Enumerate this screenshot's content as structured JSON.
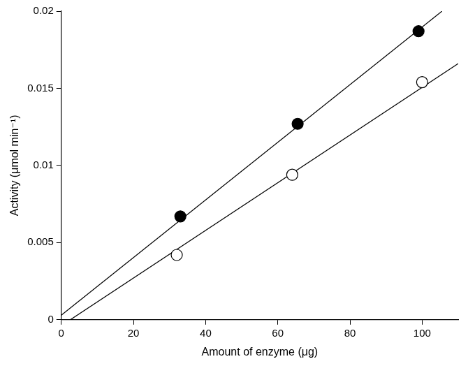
{
  "chart_data": {
    "type": "scatter",
    "x_label": "Amount of enzyme (μg)",
    "y_label": "Activity (μmol min⁻¹)",
    "xlim": [
      0,
      110
    ],
    "xticks": [
      0,
      20,
      40,
      60,
      80,
      100
    ],
    "ylim": [
      0,
      0.02
    ],
    "yticks": [
      0,
      0.005,
      0.01,
      0.015,
      0.02
    ],
    "grid": false,
    "series": [
      {
        "type": "line",
        "color": "#000000",
        "line_style": "solid",
        "x": [
          0,
          105.5
        ],
        "values": [
          0.0003,
          0.02
        ]
      },
      {
        "type": "line",
        "color": "#000000",
        "line_style": "solid",
        "x": [
          2.5,
          110
        ],
        "values": [
          0,
          0.0166
        ]
      },
      {
        "type": "scatter",
        "color": "#000000",
        "marker": "circle",
        "x": [
          33,
          65.5,
          99
        ],
        "values": [
          0.0067,
          0.0127,
          0.0187
        ]
      },
      {
        "type": "scatter",
        "color": "#000000",
        "marker": "open_circle",
        "x": [
          32,
          64,
          100
        ],
        "values": [
          0.0042,
          0.0094,
          0.0154
        ]
      }
    ]
  }
}
